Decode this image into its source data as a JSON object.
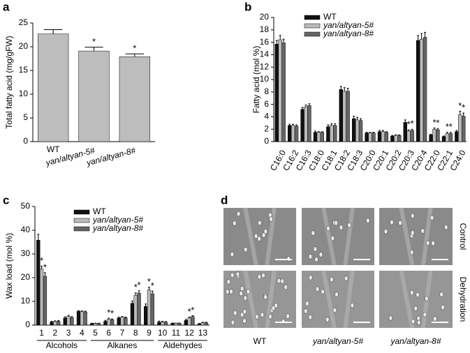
{
  "chart_data": [
    {
      "type": "bar",
      "panel_label": "a",
      "ylabel": "Total fatty acid (mg/gFW)",
      "categories": [
        "WT",
        "yan/altyan-5#",
        "yan/altyan-8#"
      ],
      "values": [
        22.7,
        19.1,
        17.9
      ],
      "errors": [
        0.9,
        0.8,
        0.6
      ],
      "annotations": [
        null,
        "*",
        "*"
      ],
      "color": "#bdbdbd",
      "ylim": [
        0,
        25
      ],
      "yticks": [
        0,
        5,
        10,
        15,
        20,
        25
      ]
    },
    {
      "type": "bar",
      "panel_label": "b",
      "ylabel": "Fatty acid (mol %)",
      "categories": [
        "C16:0",
        "C16:2",
        "C16:3",
        "C18:0",
        "C18:1",
        "C18:2",
        "C18:3",
        "C20:0",
        "C20:1",
        "C20:2",
        "C20:3",
        "C20:4",
        "C22:0",
        "C22:1",
        "C24:0"
      ],
      "series": [
        {
          "name": "WT",
          "color": "#111111",
          "values": [
            15.7,
            2.6,
            5.2,
            1.5,
            2.4,
            8.4,
            3.7,
            1.4,
            1.6,
            0.9,
            3.1,
            16.3,
            1.1,
            0.8,
            1.6
          ],
          "errors": [
            0.6,
            0.2,
            0.3,
            0.2,
            0.3,
            0.5,
            0.4,
            0.1,
            0.2,
            0.1,
            0.4,
            0.8,
            0.1,
            0.1,
            0.2
          ],
          "annotations": [
            null,
            null,
            null,
            null,
            null,
            null,
            null,
            null,
            null,
            null,
            null,
            null,
            null,
            null,
            null
          ]
        },
        {
          "name": "yan/altyan-5#",
          "color": "#bbbbbb",
          "values": [
            16.4,
            2.6,
            5.6,
            1.5,
            2.6,
            8.1,
            3.5,
            1.4,
            1.6,
            1.0,
            1.7,
            16.5,
            2.0,
            1.3,
            4.3
          ],
          "errors": [
            0.7,
            0.2,
            0.3,
            0.1,
            0.3,
            0.6,
            0.4,
            0.1,
            0.2,
            0.1,
            0.2,
            0.9,
            0.2,
            0.2,
            0.6
          ],
          "annotations": [
            null,
            null,
            null,
            null,
            null,
            null,
            null,
            null,
            null,
            null,
            "*",
            null,
            "*",
            "*",
            "*"
          ]
        },
        {
          "name": "yan/altyan-8#",
          "color": "#666666",
          "values": [
            15.9,
            2.5,
            5.8,
            1.5,
            2.6,
            8.1,
            3.4,
            1.4,
            1.5,
            1.0,
            1.8,
            16.8,
            1.9,
            1.3,
            4.1
          ],
          "errors": [
            0.6,
            0.2,
            0.3,
            0.1,
            0.3,
            0.5,
            0.3,
            0.1,
            0.1,
            0.1,
            0.2,
            0.8,
            0.2,
            0.2,
            0.5
          ],
          "annotations": [
            null,
            null,
            null,
            null,
            null,
            null,
            null,
            null,
            null,
            null,
            "*",
            null,
            "*",
            "*",
            "*"
          ]
        }
      ],
      "ylim": [
        0,
        20
      ],
      "yticks": [
        0,
        2,
        4,
        6,
        8,
        10,
        12,
        14,
        16,
        18,
        20
      ]
    },
    {
      "type": "bar",
      "panel_label": "c",
      "ylabel": "Wax load (mol %)",
      "categories": [
        "1",
        "2",
        "3",
        "4",
        "5",
        "6",
        "7",
        "8",
        "9",
        "10",
        "11",
        "12",
        "13"
      ],
      "groups": [
        {
          "label": "Alcohols",
          "span": 4
        },
        {
          "label": "Alkanes",
          "span": 5
        },
        {
          "label": "Aldehydes",
          "span": 4
        }
      ],
      "series": [
        {
          "name": "WT",
          "color": "#111111",
          "values": [
            35.8,
            1.3,
            3.0,
            5.8,
            0.7,
            1.6,
            3.0,
            9.2,
            7.9,
            1.3,
            0.8,
            2.0,
            0.6
          ],
          "errors": [
            2.5,
            0.3,
            0.5,
            0.3,
            0.1,
            0.4,
            0.3,
            1.0,
            1.0,
            0.4,
            0.1,
            0.4,
            0.1
          ],
          "annotations": [
            null,
            null,
            null,
            null,
            null,
            null,
            null,
            null,
            null,
            null,
            null,
            null,
            null
          ]
        },
        {
          "name": "yan/altyan-5#",
          "color": "#bbbbbb",
          "values": [
            23.6,
            1.5,
            3.6,
            5.7,
            0.7,
            2.5,
            3.3,
            12.6,
            14.8,
            1.3,
            0.8,
            3.0,
            1.0
          ],
          "errors": [
            1.2,
            0.3,
            0.5,
            0.3,
            0.1,
            0.4,
            0.3,
            1.0,
            1.2,
            0.3,
            0.1,
            0.4,
            0.2
          ],
          "annotations": [
            "*",
            null,
            null,
            null,
            null,
            "*",
            null,
            "*",
            "*",
            null,
            null,
            "*",
            null
          ]
        },
        {
          "name": "yan/altyan-8#",
          "color": "#666666",
          "values": [
            20.6,
            1.6,
            3.2,
            5.6,
            0.7,
            2.3,
            3.1,
            13.5,
            13.2,
            1.2,
            0.8,
            3.6,
            1.0
          ],
          "errors": [
            1.5,
            0.3,
            0.4,
            0.3,
            0.1,
            0.3,
            0.3,
            1.0,
            1.1,
            0.3,
            0.1,
            0.4,
            0.2
          ],
          "annotations": [
            "*",
            null,
            null,
            null,
            null,
            "*",
            null,
            "*",
            "*",
            null,
            null,
            "*",
            null
          ]
        }
      ],
      "ylim": [
        0,
        50
      ],
      "yticks": [
        0,
        10,
        20,
        30,
        40,
        50
      ]
    }
  ],
  "image_panel": {
    "panel_label": "d",
    "row_labels": [
      "Control",
      "Dehydration"
    ],
    "column_labels": [
      "WT",
      "yan/altyan-5#",
      "yan/altyan-8#"
    ]
  }
}
